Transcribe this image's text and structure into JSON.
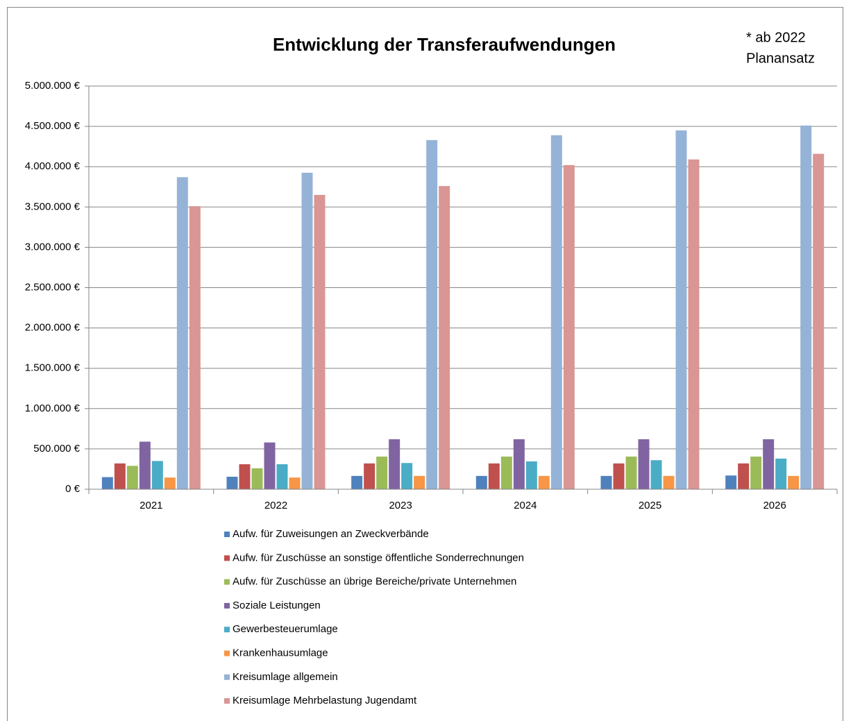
{
  "chart_data": {
    "type": "bar",
    "title": "Entwicklung der Transferaufwendungen",
    "note": [
      "* ab 2022",
      "Planansatz"
    ],
    "categories": [
      "2021",
      "2022",
      "2023",
      "2024",
      "2025",
      "2026"
    ],
    "series": [
      {
        "name": "Aufw. für Zuweisungen an Zweckverbände",
        "color": "#4f81bd",
        "values": [
          150000,
          155000,
          165000,
          165000,
          165000,
          170000
        ]
      },
      {
        "name": "Aufw. für Zuschüsse an sonstige öffentliche Sonderrechnungen",
        "color": "#c0504d",
        "values": [
          320000,
          310000,
          320000,
          320000,
          320000,
          320000
        ]
      },
      {
        "name": "Aufw. für Zuschüsse an übrige Bereiche/private Unternehmen",
        "color": "#9bbb59",
        "values": [
          290000,
          260000,
          405000,
          405000,
          405000,
          405000
        ]
      },
      {
        "name": "Soziale Leistungen",
        "color": "#8064a2",
        "values": [
          590000,
          580000,
          620000,
          620000,
          620000,
          620000
        ]
      },
      {
        "name": "Gewerbesteuerumlage",
        "color": "#4bacc6",
        "values": [
          350000,
          310000,
          325000,
          345000,
          360000,
          380000
        ]
      },
      {
        "name": "Krankenhausumlage",
        "color": "#f79646",
        "values": [
          145000,
          145000,
          165000,
          165000,
          165000,
          165000
        ]
      },
      {
        "name": "Kreisumlage allgemein",
        "color": "#95b3d7",
        "values": [
          3870000,
          3925000,
          4330000,
          4390000,
          4450000,
          4510000
        ]
      },
      {
        "name": "Kreisumlage Mehrbelastung Jugendamt",
        "color": "#d99694",
        "values": [
          3510000,
          3650000,
          3760000,
          4020000,
          4090000,
          4160000
        ]
      }
    ],
    "ylim": [
      0,
      5000000
    ],
    "yticks": [
      {
        "value": 0,
        "label": "0 €"
      },
      {
        "value": 500000,
        "label": "500.000 €"
      },
      {
        "value": 1000000,
        "label": "1.000.000 €"
      },
      {
        "value": 1500000,
        "label": "1.500.000 €"
      },
      {
        "value": 2000000,
        "label": "2.000.000 €"
      },
      {
        "value": 2500000,
        "label": "2.500.000 €"
      },
      {
        "value": 3000000,
        "label": "3.000.000 €"
      },
      {
        "value": 3500000,
        "label": "3.500.000 €"
      },
      {
        "value": 4000000,
        "label": "4.000.000 €"
      },
      {
        "value": 4500000,
        "label": "4.500.000 €"
      },
      {
        "value": 5000000,
        "label": "5.000.000 €"
      }
    ],
    "grid": true,
    "legend": "bottom"
  }
}
